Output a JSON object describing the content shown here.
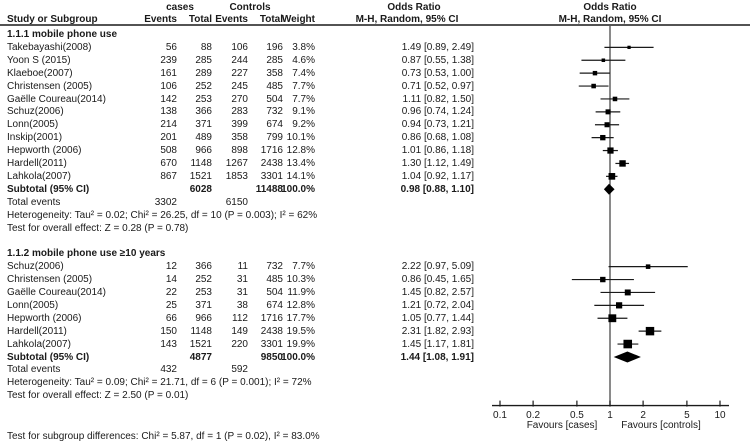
{
  "header": {
    "col_study": "Study or Subgroup",
    "group_cases": "cases",
    "group_controls": "Controls",
    "col_events": "Events",
    "col_total": "Total",
    "col_weight": "Weight",
    "or_title": "Odds Ratio",
    "or_subtitle": "M-H, Random, 95% CI",
    "plot_title": "Odds Ratio",
    "plot_subtitle": "M-H, Random, 95% CI"
  },
  "axis": {
    "tick_labels": [
      "0.1",
      "0.2",
      "0.5",
      "1",
      "2",
      "5",
      "10"
    ],
    "favours_left": "Favours [cases]",
    "favours_right": "Favours [controls]"
  },
  "footer": {
    "subgroup_test": "Test for subgroup differences: Chi² = 5.87, df = 1 (P = 0.02), I² = 83.0%"
  },
  "colors": {
    "text": "#1a1a1a",
    "line": "#1a1a1a",
    "null_line": "#595959",
    "marker": "#000000",
    "diamond": "#000000"
  },
  "chart_data": {
    "type": "forest",
    "effect_measure": "Odds Ratio",
    "method": "M-H, Random, 95% CI",
    "x_scale": "log10",
    "x_range": [
      0.1,
      10
    ],
    "x_ticks": [
      0.1,
      0.2,
      0.5,
      1,
      2,
      5,
      10
    ],
    "null_line": 1,
    "subgroups": [
      {
        "label": "1.1.1 mobile phone use",
        "studies": [
          {
            "name": "Takebayashi(2008)",
            "cases_events": 56,
            "cases_total": 88,
            "controls_events": 106,
            "controls_total": 196,
            "weight": "3.8%",
            "weight_pct": 3.8,
            "ci_text": "1.49 [0.89, 2.49]",
            "est": 1.49,
            "lo": 0.89,
            "hi": 2.49
          },
          {
            "name": "Yoon S (2015)",
            "cases_events": 239,
            "cases_total": 285,
            "controls_events": 244,
            "controls_total": 285,
            "weight": "4.6%",
            "weight_pct": 4.6,
            "ci_text": "0.87 [0.55, 1.38]",
            "est": 0.87,
            "lo": 0.55,
            "hi": 1.38
          },
          {
            "name": "Klaeboe(2007)",
            "cases_events": 161,
            "cases_total": 289,
            "controls_events": 227,
            "controls_total": 358,
            "weight": "7.4%",
            "weight_pct": 7.4,
            "ci_text": "0.73 [0.53, 1.00]",
            "est": 0.73,
            "lo": 0.53,
            "hi": 1.0
          },
          {
            "name": "Christensen (2005)",
            "cases_events": 106,
            "cases_total": 252,
            "controls_events": 245,
            "controls_total": 485,
            "weight": "7.7%",
            "weight_pct": 7.7,
            "ci_text": "0.71 [0.52, 0.97]",
            "est": 0.71,
            "lo": 0.52,
            "hi": 0.97
          },
          {
            "name": "Gaëlle Coureau(2014)",
            "cases_events": 142,
            "cases_total": 253,
            "controls_events": 270,
            "controls_total": 504,
            "weight": "7.7%",
            "weight_pct": 7.7,
            "ci_text": "1.11 [0.82, 1.50]",
            "est": 1.11,
            "lo": 0.82,
            "hi": 1.5
          },
          {
            "name": "Schuz(2006)",
            "cases_events": 138,
            "cases_total": 366,
            "controls_events": 283,
            "controls_total": 732,
            "weight": "9.1%",
            "weight_pct": 9.1,
            "ci_text": "0.96 [0.74, 1.24]",
            "est": 0.96,
            "lo": 0.74,
            "hi": 1.24
          },
          {
            "name": "Lonn(2005)",
            "cases_events": 214,
            "cases_total": 371,
            "controls_events": 399,
            "controls_total": 674,
            "weight": "9.2%",
            "weight_pct": 9.2,
            "ci_text": "0.94 [0.73, 1.21]",
            "est": 0.94,
            "lo": 0.73,
            "hi": 1.21
          },
          {
            "name": "Inskip(2001)",
            "cases_events": 201,
            "cases_total": 489,
            "controls_events": 358,
            "controls_total": 799,
            "weight": "10.1%",
            "weight_pct": 10.1,
            "ci_text": "0.86 [0.68, 1.08]",
            "est": 0.86,
            "lo": 0.68,
            "hi": 1.08
          },
          {
            "name": "Hepworth (2006)",
            "cases_events": 508,
            "cases_total": 966,
            "controls_events": 898,
            "controls_total": 1716,
            "weight": "12.8%",
            "weight_pct": 12.8,
            "ci_text": "1.01 [0.86, 1.18]",
            "est": 1.01,
            "lo": 0.86,
            "hi": 1.18
          },
          {
            "name": "Hardell(2011)",
            "cases_events": 670,
            "cases_total": 1148,
            "controls_events": 1267,
            "controls_total": 2438,
            "weight": "13.4%",
            "weight_pct": 13.4,
            "ci_text": "1.30 [1.12, 1.49]",
            "est": 1.3,
            "lo": 1.12,
            "hi": 1.49
          },
          {
            "name": "Lahkola(2007)",
            "cases_events": 867,
            "cases_total": 1521,
            "controls_events": 1853,
            "controls_total": 3301,
            "weight": "14.1%",
            "weight_pct": 14.1,
            "ci_text": "1.04 [0.92, 1.17]",
            "est": 1.04,
            "lo": 0.92,
            "hi": 1.17
          }
        ],
        "subtotal": {
          "label": "Subtotal (95% CI)",
          "cases_total": 6028,
          "controls_total": 11488,
          "weight": "100.0%",
          "ci_text": "0.98 [0.88, 1.10]",
          "est": 0.98,
          "lo": 0.88,
          "hi": 1.1
        },
        "total_events": {
          "label": "Total events",
          "cases": 3302,
          "controls": 6150
        },
        "heterogeneity": "Heterogeneity: Tau² = 0.02; Chi² = 26.25, df = 10 (P = 0.003); I² = 62%",
        "overall_effect": "Test for overall effect: Z = 0.28 (P = 0.78)"
      },
      {
        "label": "1.1.2 mobile phone use ≥10 years",
        "studies": [
          {
            "name": "Schuz(2006)",
            "cases_events": 12,
            "cases_total": 366,
            "controls_events": 11,
            "controls_total": 732,
            "weight": "7.7%",
            "weight_pct": 7.7,
            "ci_text": "2.22 [0.97, 5.09]",
            "est": 2.22,
            "lo": 0.97,
            "hi": 5.09
          },
          {
            "name": "Christensen (2005)",
            "cases_events": 14,
            "cases_total": 252,
            "controls_events": 31,
            "controls_total": 485,
            "weight": "10.3%",
            "weight_pct": 10.3,
            "ci_text": "0.86 [0.45, 1.65]",
            "est": 0.86,
            "lo": 0.45,
            "hi": 1.65
          },
          {
            "name": "Gaëlle Coureau(2014)",
            "cases_events": 22,
            "cases_total": 253,
            "controls_events": 31,
            "controls_total": 504,
            "weight": "11.9%",
            "weight_pct": 11.9,
            "ci_text": "1.45 [0.82, 2.57]",
            "est": 1.45,
            "lo": 0.82,
            "hi": 2.57
          },
          {
            "name": "Lonn(2005)",
            "cases_events": 25,
            "cases_total": 371,
            "controls_events": 38,
            "controls_total": 674,
            "weight": "12.8%",
            "weight_pct": 12.8,
            "ci_text": "1.21 [0.72, 2.04]",
            "est": 1.21,
            "lo": 0.72,
            "hi": 2.04
          },
          {
            "name": "Hepworth (2006)",
            "cases_events": 66,
            "cases_total": 966,
            "controls_events": 112,
            "controls_total": 1716,
            "weight": "17.7%",
            "weight_pct": 17.7,
            "ci_text": "1.05 [0.77, 1.44]",
            "est": 1.05,
            "lo": 0.77,
            "hi": 1.44
          },
          {
            "name": "Hardell(2011)",
            "cases_events": 150,
            "cases_total": 1148,
            "controls_events": 149,
            "controls_total": 2438,
            "weight": "19.5%",
            "weight_pct": 19.5,
            "ci_text": "2.31 [1.82, 2.93]",
            "est": 2.31,
            "lo": 1.82,
            "hi": 2.93
          },
          {
            "name": "Lahkola(2007)",
            "cases_events": 143,
            "cases_total": 1521,
            "controls_events": 220,
            "controls_total": 3301,
            "weight": "19.9%",
            "weight_pct": 19.9,
            "ci_text": "1.45 [1.17, 1.81]",
            "est": 1.45,
            "lo": 1.17,
            "hi": 1.81
          }
        ],
        "subtotal": {
          "label": "Subtotal (95% CI)",
          "cases_total": 4877,
          "controls_total": 9850,
          "weight": "100.0%",
          "ci_text": "1.44 [1.08, 1.91]",
          "est": 1.44,
          "lo": 1.08,
          "hi": 1.91
        },
        "total_events": {
          "label": "Total events",
          "cases": 432,
          "controls": 592
        },
        "heterogeneity": "Heterogeneity: Tau² = 0.09; Chi² = 21.71, df = 6 (P = 0.001); I² = 72%",
        "overall_effect": "Test for overall effect: Z = 2.50 (P = 0.01)"
      }
    ]
  }
}
